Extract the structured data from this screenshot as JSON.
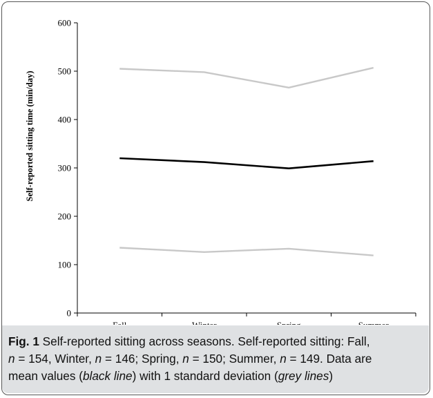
{
  "chart_data": {
    "type": "line",
    "title": "",
    "xlabel": "",
    "ylabel": "Self-reported sitting time (min/day)",
    "categories": [
      "Fall",
      "Winter",
      "Spring",
      "Summer"
    ],
    "ylim": [
      0,
      600
    ],
    "yticks": [
      "0",
      "100",
      "200",
      "300",
      "400",
      "500",
      "600"
    ],
    "grid": false,
    "series": [
      {
        "values": [
          320,
          312,
          299,
          314
        ],
        "color": "#000000"
      },
      {
        "values": [
          505,
          498,
          466,
          507
        ],
        "color": "#c8c8c8"
      },
      {
        "values": [
          135,
          126,
          133,
          119
        ],
        "color": "#c8c8c8"
      }
    ]
  },
  "caption": {
    "fig_label": "Fig. 1",
    "line1": " Self-reported sitting across seasons. Self-reported sitting: Fall,",
    "line2_n1": "n",
    "line2_t1": " = 154, Winter, ",
    "line2_n2": "n",
    "line2_t2": " = 146; Spring, ",
    "line2_n3": "n",
    "line2_t3": " = 150; Summer, ",
    "line2_n4": "n",
    "line2_t4": " = 149. Data are",
    "line3_t1": "mean values (",
    "line3_i1": "black line",
    "line3_t2": ") with 1 standard deviation (",
    "line3_i2": "grey lines",
    "line3_t3": ")"
  }
}
